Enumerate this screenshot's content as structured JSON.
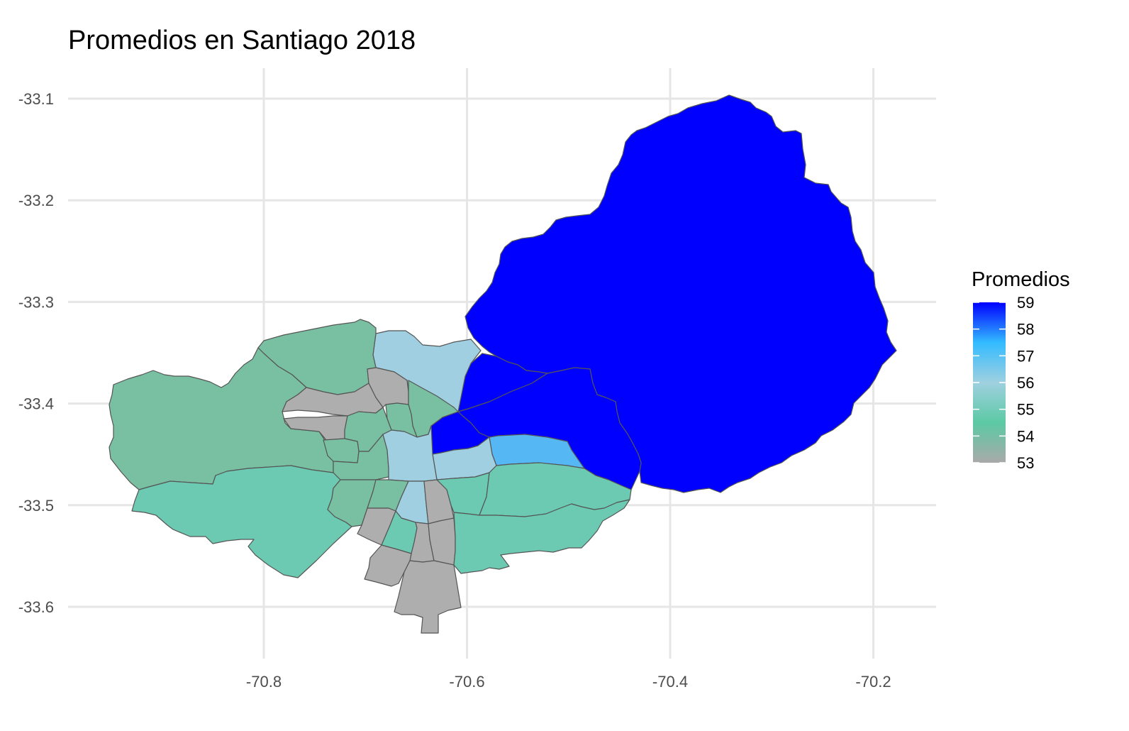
{
  "title": "Promedios en Santiago 2018",
  "x_axis": {
    "ticks": [
      -70.8,
      -70.6,
      -70.4,
      -70.2
    ],
    "labels": [
      "-70.8",
      "-70.6",
      "-70.4",
      "-70.2"
    ]
  },
  "y_axis": {
    "ticks": [
      -33.1,
      -33.2,
      -33.3,
      -33.4,
      -33.5,
      -33.6
    ],
    "labels": [
      "-33.1",
      "-33.2",
      "-33.3",
      "-33.4",
      "-33.5",
      "-33.6"
    ]
  },
  "legend": {
    "title": "Promedios",
    "ticks": [
      59,
      58,
      57,
      56,
      55,
      54,
      53
    ],
    "labels": [
      "59",
      "58",
      "57",
      "56",
      "55",
      "54",
      "53"
    ],
    "gradient": [
      "#0000FF",
      "#33BBFF",
      "#9FD0E0",
      "#5CC9A4",
      "#A9A9A9"
    ]
  },
  "map_fills": {
    "v59": "#0000FF",
    "v57": "#55B8F5",
    "v56": "#9FCFE0",
    "v55": "#6CCAB2",
    "v54": "#79BFA1",
    "v53": "#AEAEAE"
  }
}
